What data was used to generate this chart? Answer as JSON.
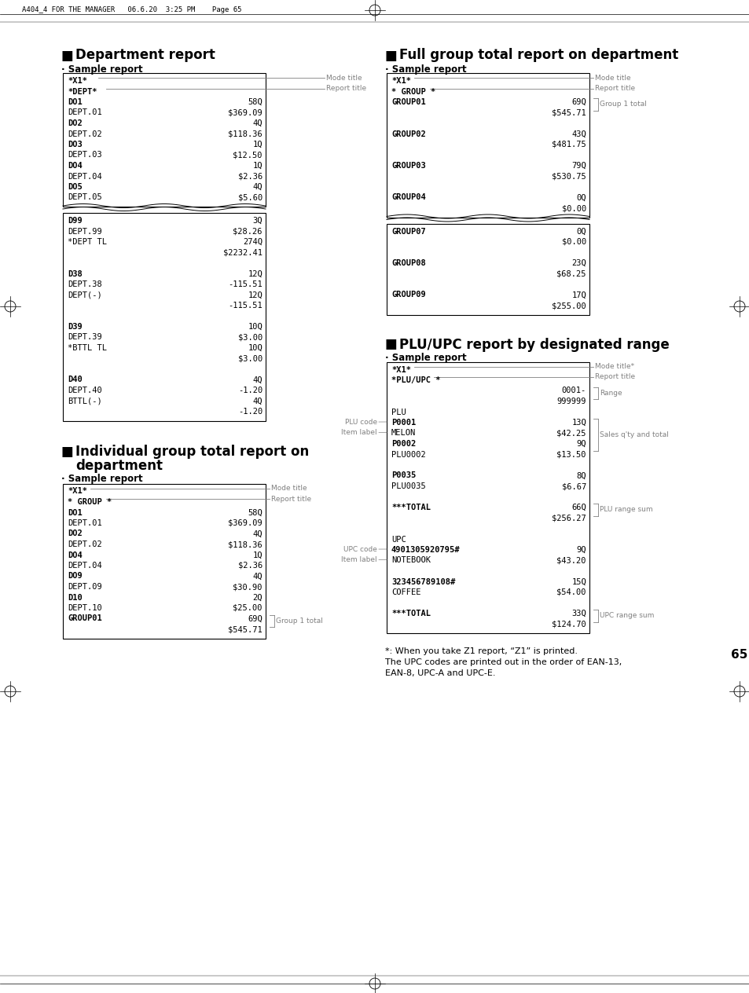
{
  "page_header": "A404_4 FOR THE MANAGER   06.6.20  3:25 PM    Page 65",
  "background_color": "#ffffff",
  "page_number": "65",
  "dept_report_title": "Department report",
  "dept_sample": "· Sample report",
  "full_group_title": "Full group total report on department",
  "full_group_sample": "· Sample report",
  "indiv_group_title1": "Individual group total report on",
  "indiv_group_title2": "department",
  "indiv_group_sample": "· Sample report",
  "plu_title": "PLU/UPC report by designated range",
  "plu_sample": "· Sample report",
  "footnote1": "*: When you take Z1 report, “Z1” is printed.",
  "footnote2": "The UPC codes are printed out in the order of EAN-13,",
  "footnote3": "EAN-8, UPC-A and UPC-E.",
  "dept_r1": [
    [
      "*X1*",
      true,
      ""
    ],
    [
      "*DEPT*",
      true,
      ""
    ],
    [
      "DO1",
      true,
      "58Q"
    ],
    [
      "DEPT.01",
      false,
      "$369.09"
    ],
    [
      "DO2",
      true,
      "4Q"
    ],
    [
      "DEPT.02",
      false,
      "$118.36"
    ],
    [
      "DO3",
      true,
      "1Q"
    ],
    [
      "DEPT.03",
      false,
      "$12.50"
    ],
    [
      "DO4",
      true,
      "1Q"
    ],
    [
      "DEPT.04",
      false,
      "$2.36"
    ],
    [
      "DO5",
      true,
      "4Q"
    ],
    [
      "DEPT.05",
      false,
      "$5.60"
    ]
  ],
  "dept_r2": [
    [
      "D99",
      true,
      "3Q"
    ],
    [
      "DEPT.99",
      false,
      "$28.26"
    ],
    [
      "*DEPT TL",
      false,
      "274Q"
    ],
    [
      "",
      false,
      "$2232.41"
    ],
    [
      "",
      false,
      ""
    ],
    [
      "D38",
      true,
      "12Q"
    ],
    [
      "DEPT.38",
      false,
      "-115.51"
    ],
    [
      "DEPT(-)",
      false,
      "12Q"
    ],
    [
      "",
      false,
      "-115.51"
    ],
    [
      "",
      false,
      ""
    ],
    [
      "D39",
      true,
      "10Q"
    ],
    [
      "DEPT.39",
      false,
      "$3.00"
    ],
    [
      "*BTTL TL",
      false,
      "10Q"
    ],
    [
      "",
      false,
      "$3.00"
    ],
    [
      "",
      false,
      ""
    ],
    [
      "D40",
      true,
      "4Q"
    ],
    [
      "DEPT.40",
      false,
      "-1.20"
    ],
    [
      "BTTL(-)",
      false,
      "4Q"
    ],
    [
      "",
      false,
      "-1.20"
    ]
  ],
  "full_r1": [
    [
      "*X1*",
      true,
      ""
    ],
    [
      "* GROUP *",
      true,
      ""
    ],
    [
      "GROUP01",
      true,
      "69Q"
    ],
    [
      "",
      false,
      "$545.71"
    ],
    [
      "",
      false,
      ""
    ],
    [
      "GROUP02",
      true,
      "43Q"
    ],
    [
      "",
      false,
      "$481.75"
    ],
    [
      "",
      false,
      ""
    ],
    [
      "GROUP03",
      true,
      "79Q"
    ],
    [
      "",
      false,
      "$530.75"
    ],
    [
      "",
      false,
      ""
    ],
    [
      "GROUP04",
      true,
      "0Q"
    ],
    [
      "",
      false,
      "$0.00"
    ]
  ],
  "full_r2": [
    [
      "GROUP07",
      true,
      "0Q"
    ],
    [
      "",
      false,
      "$0.00"
    ],
    [
      "",
      false,
      ""
    ],
    [
      "GROUP08",
      true,
      "23Q"
    ],
    [
      "",
      false,
      "$68.25"
    ],
    [
      "",
      false,
      ""
    ],
    [
      "GROUP09",
      true,
      "17Q"
    ],
    [
      "",
      false,
      "$255.00"
    ]
  ],
  "indiv_lines": [
    [
      "*X1*",
      true,
      ""
    ],
    [
      "* GROUP *",
      true,
      ""
    ],
    [
      "DO1",
      true,
      "58Q"
    ],
    [
      "DEPT.01",
      false,
      "$369.09"
    ],
    [
      "DO2",
      true,
      "4Q"
    ],
    [
      "DEPT.02",
      false,
      "$118.36"
    ],
    [
      "DO4",
      true,
      "1Q"
    ],
    [
      "DEPT.04",
      false,
      "$2.36"
    ],
    [
      "DO9",
      true,
      "4Q"
    ],
    [
      "DEPT.09",
      false,
      "$30.90"
    ],
    [
      "D10",
      true,
      "2Q"
    ],
    [
      "DEPT.10",
      false,
      "$25.00"
    ],
    [
      "GROUP01",
      true,
      "69Q"
    ],
    [
      "",
      false,
      "$545.71"
    ]
  ],
  "plu_lines": [
    [
      "*X1*",
      true,
      ""
    ],
    [
      "*PLU/UPC *",
      true,
      ""
    ],
    [
      "",
      false,
      "0001-"
    ],
    [
      "",
      false,
      "999999"
    ],
    [
      "PLU",
      false,
      ""
    ],
    [
      "P0001",
      true,
      "13Q"
    ],
    [
      "MELON",
      false,
      "$42.25"
    ],
    [
      "P0002",
      true,
      "9Q"
    ],
    [
      "PLU0002",
      false,
      "$13.50"
    ],
    [
      "",
      false,
      ""
    ],
    [
      "P0035",
      true,
      "8Q"
    ],
    [
      "PLU0035",
      false,
      "$6.67"
    ],
    [
      "",
      false,
      ""
    ],
    [
      "***TOTAL",
      true,
      "66Q"
    ],
    [
      "",
      false,
      "$256.27"
    ],
    [
      "",
      false,
      ""
    ],
    [
      "UPC",
      false,
      ""
    ],
    [
      "4901305920795#",
      true,
      "9Q"
    ],
    [
      "NOTEBOOK",
      false,
      "$43.20"
    ],
    [
      "",
      false,
      ""
    ],
    [
      "323456789108#",
      true,
      "15Q"
    ],
    [
      "COFFEE",
      false,
      "$54.00"
    ],
    [
      "",
      false,
      ""
    ],
    [
      "***TOTAL",
      true,
      "33Q"
    ],
    [
      "",
      false,
      "$124.70"
    ]
  ]
}
